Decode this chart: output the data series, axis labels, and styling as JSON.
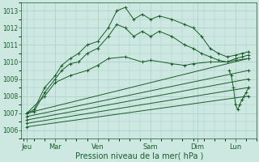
{
  "xlabel": "Pression niveau de la mer( hPa )",
  "background_color": "#cce8e0",
  "grid_color": "#aacec8",
  "line_color": "#1a5c2a",
  "ylim": [
    1005.5,
    1013.5
  ],
  "xlim": [
    -0.05,
    5.5
  ],
  "yticks": [
    1006,
    1007,
    1008,
    1009,
    1010,
    1011,
    1012,
    1013
  ],
  "day_labels": [
    "Jeu",
    "Mar",
    "Ven",
    "Sam",
    "Dim",
    "Lun"
  ],
  "day_tick_pos": [
    0.08,
    0.75,
    1.75,
    3.0,
    4.1,
    5.0
  ],
  "series": [
    {
      "x": [
        0.08,
        0.25,
        0.5,
        0.75,
        0.9,
        1.1,
        1.3,
        1.5,
        1.75,
        2.0,
        2.2,
        2.4,
        2.6,
        2.8,
        3.0,
        3.2,
        3.5,
        3.8,
        4.0,
        4.2,
        4.4,
        4.6,
        4.8,
        5.0,
        5.15,
        5.3
      ],
      "y": [
        1007.0,
        1007.2,
        1008.5,
        1009.2,
        1009.8,
        1010.2,
        1010.5,
        1011.0,
        1011.2,
        1012.0,
        1013.0,
        1013.2,
        1012.5,
        1012.8,
        1012.5,
        1012.7,
        1012.5,
        1012.2,
        1012.0,
        1011.5,
        1010.8,
        1010.5,
        1010.3,
        1010.4,
        1010.5,
        1010.6
      ]
    },
    {
      "x": [
        0.08,
        0.25,
        0.5,
        0.75,
        0.9,
        1.1,
        1.3,
        1.5,
        1.75,
        2.0,
        2.2,
        2.4,
        2.6,
        2.8,
        3.0,
        3.2,
        3.5,
        3.8,
        4.0,
        4.2,
        4.4,
        4.6,
        4.8,
        5.0,
        5.15,
        5.3
      ],
      "y": [
        1007.0,
        1007.1,
        1008.2,
        1009.0,
        1009.5,
        1009.9,
        1010.0,
        1010.5,
        1010.8,
        1011.5,
        1012.2,
        1012.0,
        1011.5,
        1011.8,
        1011.5,
        1011.8,
        1011.5,
        1011.0,
        1010.8,
        1010.5,
        1010.3,
        1010.1,
        1010.0,
        1010.2,
        1010.3,
        1010.4
      ]
    },
    {
      "x": [
        0.08,
        0.5,
        0.75,
        1.1,
        1.5,
        1.75,
        2.0,
        2.4,
        2.8,
        3.0,
        3.5,
        3.8,
        4.0,
        4.4,
        4.8,
        5.0,
        5.3
      ],
      "y": [
        1007.0,
        1008.0,
        1008.8,
        1009.2,
        1009.5,
        1009.8,
        1010.2,
        1010.3,
        1010.0,
        1010.1,
        1009.9,
        1009.8,
        1009.9,
        1010.0,
        1010.0,
        1010.1,
        1010.2
      ]
    },
    {
      "x": [
        0.08,
        5.3
      ],
      "y": [
        1007.0,
        1010.2
      ]
    },
    {
      "x": [
        0.08,
        5.3
      ],
      "y": [
        1006.8,
        1009.5
      ]
    },
    {
      "x": [
        0.08,
        5.3
      ],
      "y": [
        1006.6,
        1009.0
      ]
    },
    {
      "x": [
        0.08,
        5.3
      ],
      "y": [
        1006.4,
        1008.5
      ]
    },
    {
      "x": [
        0.08,
        5.3
      ],
      "y": [
        1006.2,
        1008.0
      ]
    }
  ],
  "detail_series": [
    {
      "x": [
        4.85,
        4.9,
        4.95,
        5.0,
        5.05,
        5.1,
        5.15,
        5.2,
        5.25,
        5.3
      ],
      "y": [
        1009.5,
        1009.2,
        1008.5,
        1007.5,
        1007.2,
        1007.5,
        1007.8,
        1008.0,
        1008.2,
        1008.5
      ]
    }
  ]
}
